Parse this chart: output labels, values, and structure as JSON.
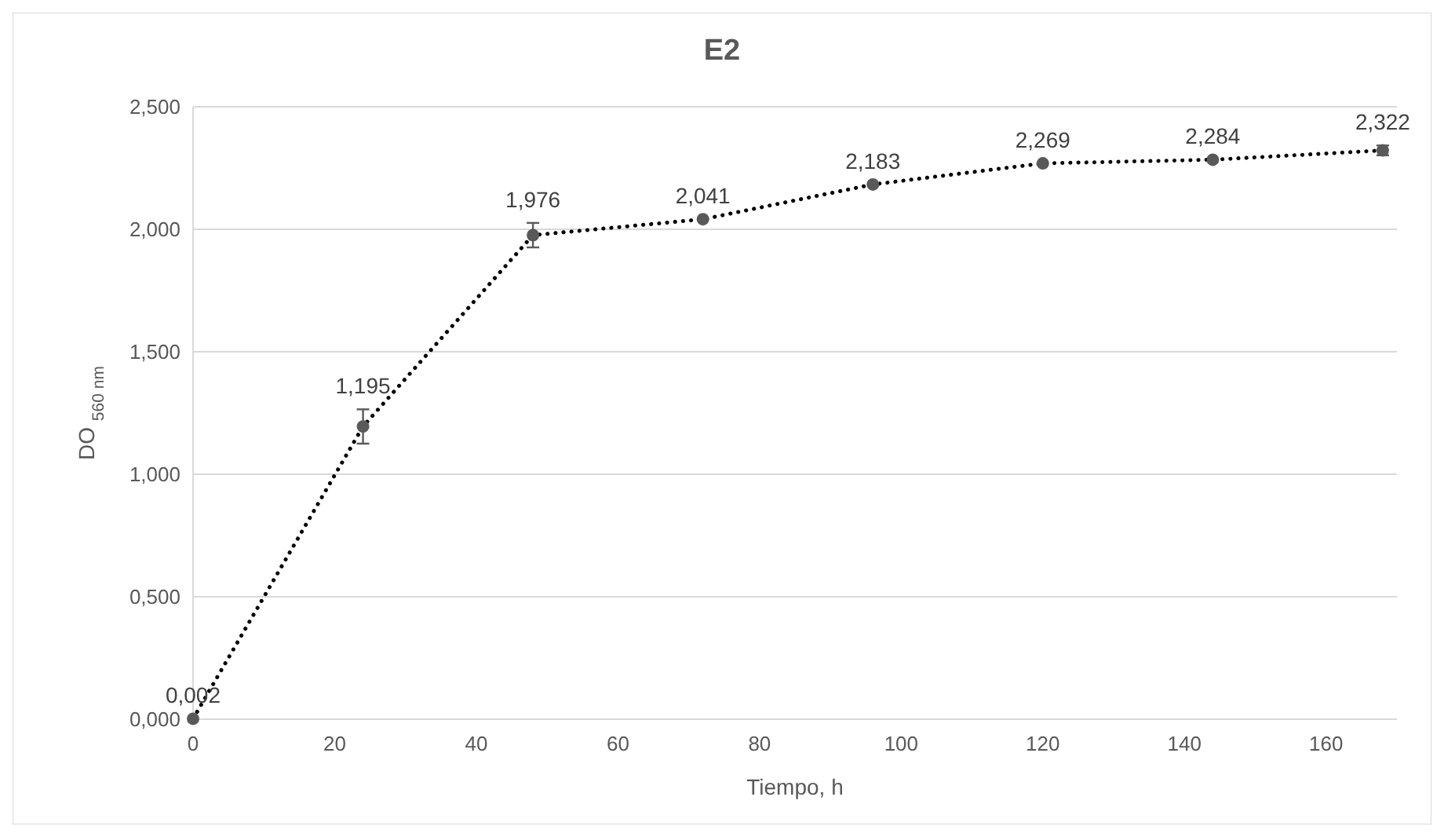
{
  "chart_data": {
    "type": "line",
    "title": "E2",
    "xlabel": "Tiempo, h",
    "ylabel": "DO $_{560 nm}$",
    "x": [
      0,
      24,
      48,
      72,
      96,
      120,
      144,
      168
    ],
    "series": [
      {
        "color": "#000000",
        "values": [
          0.002,
          1.195,
          1.976,
          2.041,
          2.183,
          2.269,
          2.284,
          2.322
        ],
        "errors": [
          null,
          0.07,
          0.05,
          null,
          null,
          null,
          null,
          0.02
        ],
        "value_labels": [
          "0,002",
          "1,195",
          "1,976",
          "2,041",
          "2,183",
          "2,269",
          "2,284",
          "2,322"
        ]
      }
    ],
    "xlim": [
      0,
      170
    ],
    "xticks": [
      0,
      20,
      40,
      60,
      80,
      100,
      120,
      140,
      160
    ],
    "ylim": [
      0,
      2.5
    ],
    "yticks": [
      {
        "value": 0,
        "label": "0,000"
      },
      {
        "value": 0.5,
        "label": "0,500"
      },
      {
        "value": 1,
        "label": "1,000"
      },
      {
        "value": 1.5,
        "label": "1,500"
      },
      {
        "value": 2,
        "label": "2,000"
      },
      {
        "value": 2.5,
        "label": "2,500"
      }
    ],
    "grid": "y",
    "marker": "circle",
    "line_style": "dotted"
  }
}
